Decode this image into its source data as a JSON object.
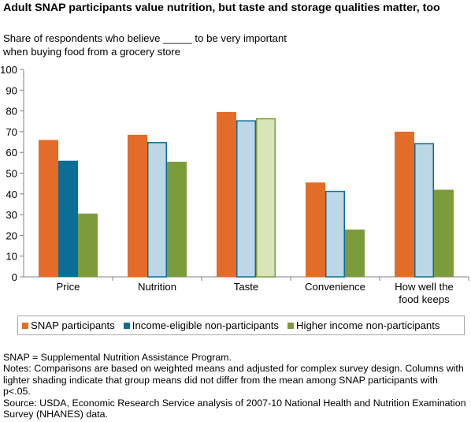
{
  "title": "Adult SNAP participants value nutrition, but taste and storage qualities matter, too",
  "subtitle_lines": [
    "Share of respondents who believe _____ to be very important",
    "when buying food from a grocery store"
  ],
  "colors": {
    "snap": "#e46c29",
    "income_eligible": "#0a6e96",
    "income_eligible_light": "#bcd7e6",
    "higher_income": "#7c9c3c",
    "higher_income_light": "#d9e4b9",
    "axis": "#808080"
  },
  "chart_data": {
    "type": "bar",
    "title": "",
    "xlabel": "",
    "ylabel": "",
    "ylim": [
      0,
      100
    ],
    "yticks": [
      0,
      10,
      20,
      30,
      40,
      50,
      60,
      70,
      80,
      90,
      100
    ],
    "categories": [
      "Price",
      "Nutrition",
      "Taste",
      "Convenience",
      "How well the food keeps"
    ],
    "category_label_lines": [
      [
        "Price"
      ],
      [
        "Nutrition"
      ],
      [
        "Taste"
      ],
      [
        "Convenience"
      ],
      [
        "How well the",
        "food keeps"
      ]
    ],
    "series": [
      {
        "name": "SNAP participants",
        "values": [
          66,
          68.5,
          79.5,
          45.5,
          70
        ],
        "light": [
          false,
          false,
          false,
          false,
          false
        ]
      },
      {
        "name": "Income-eligible non-participants",
        "values": [
          56,
          65,
          75.5,
          41.5,
          64.5
        ],
        "light": [
          false,
          true,
          true,
          true,
          true
        ]
      },
      {
        "name": "Higher income non-participants",
        "values": [
          30.5,
          55.5,
          76.5,
          22.8,
          42
        ],
        "light": [
          false,
          false,
          true,
          false,
          false
        ]
      }
    ],
    "legend_position": "bottom",
    "grid": false
  },
  "notes": [
    "SNAP = Supplemental Nutrition Assistance Program.",
    "Notes: Comparisons are based on weighted means and adjusted for complex survey design. Columns with lighter shading indicate that group means did not differ from the mean among SNAP participants with p<.05.",
    "Source: USDA, Economic Research Service analysis of 2007-10 National Health and Nutrition Examination Survey (NHANES) data."
  ]
}
